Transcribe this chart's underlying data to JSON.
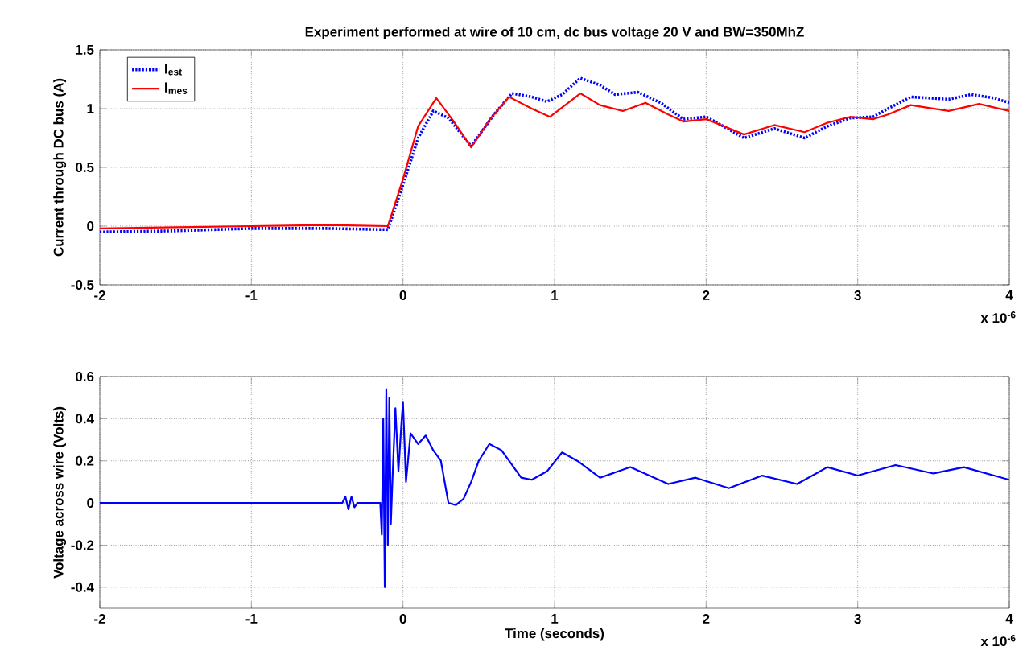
{
  "chart_data": [
    {
      "type": "line",
      "title": "Experiment performed at wire of 10 cm, dc bus voltage 20 V and BW=350MhZ",
      "ylabel": "Current through DC bus (A)",
      "series": [
        {
          "name": "I$_{est}$",
          "color": "#0000ff",
          "line_style": "dotted",
          "x": [
            -2,
            -1.5,
            -1,
            -0.5,
            -0.1,
            0,
            0.1,
            0.2,
            0.3,
            0.45,
            0.6,
            0.72,
            0.85,
            0.95,
            1.05,
            1.17,
            1.3,
            1.4,
            1.55,
            1.7,
            1.85,
            2.0,
            2.1,
            2.25,
            2.45,
            2.65,
            2.8,
            2.95,
            3.1,
            3.2,
            3.35,
            3.6,
            3.75,
            3.9,
            4
          ],
          "values": [
            -0.05,
            -0.04,
            -0.02,
            -0.02,
            -0.03,
            0.35,
            0.75,
            0.98,
            0.92,
            0.68,
            0.95,
            1.13,
            1.1,
            1.06,
            1.12,
            1.26,
            1.2,
            1.12,
            1.14,
            1.05,
            0.91,
            0.93,
            0.86,
            0.75,
            0.83,
            0.75,
            0.85,
            0.92,
            0.93,
            1.0,
            1.1,
            1.08,
            1.12,
            1.09,
            1.05
          ]
        },
        {
          "name": "I$_{mes}$",
          "color": "#ff0000",
          "line_style": "solid",
          "x": [
            -2,
            -1.5,
            -1,
            -0.5,
            -0.1,
            0,
            0.1,
            0.22,
            0.33,
            0.45,
            0.58,
            0.7,
            0.85,
            0.97,
            1.17,
            1.3,
            1.45,
            1.6,
            1.75,
            1.85,
            2.0,
            2.1,
            2.25,
            2.45,
            2.65,
            2.8,
            2.95,
            3.1,
            3.2,
            3.35,
            3.6,
            3.8,
            4
          ],
          "values": [
            -0.02,
            -0.01,
            0.0,
            0.01,
            0.0,
            0.4,
            0.85,
            1.09,
            0.9,
            0.67,
            0.92,
            1.1,
            1.0,
            0.93,
            1.13,
            1.03,
            0.98,
            1.05,
            0.95,
            0.89,
            0.91,
            0.86,
            0.78,
            0.86,
            0.8,
            0.88,
            0.93,
            0.91,
            0.95,
            1.03,
            0.98,
            1.04,
            0.98
          ]
        }
      ],
      "xlim": [
        -2,
        4
      ],
      "ylim": [
        -0.5,
        1.5
      ],
      "xticks": [
        -2,
        -1,
        0,
        1,
        2,
        3,
        4
      ],
      "yticks": [
        -0.5,
        0,
        0.5,
        1,
        1.5
      ],
      "grid": true,
      "legend": "top left",
      "marker": "none",
      "annotations": [
        "x 10$^{-6}$"
      ]
    },
    {
      "type": "line",
      "xlabel": "Time (seconds)",
      "ylabel": "Voltage across wire (Volts)",
      "series": [
        {
          "color": "#0000ff",
          "line_style": "solid",
          "x": [
            -2,
            -1.5,
            -1,
            -0.5,
            -0.4,
            -0.38,
            -0.36,
            -0.34,
            -0.32,
            -0.3,
            -0.2,
            -0.15,
            -0.14,
            -0.13,
            -0.12,
            -0.11,
            -0.1,
            -0.09,
            -0.08,
            -0.07,
            -0.05,
            -0.03,
            -0.01,
            0.0,
            0.02,
            0.05,
            0.1,
            0.15,
            0.2,
            0.25,
            0.3,
            0.35,
            0.4,
            0.45,
            0.5,
            0.57,
            0.65,
            0.72,
            0.78,
            0.85,
            0.95,
            1.05,
            1.15,
            1.3,
            1.5,
            1.75,
            1.93,
            2.15,
            2.37,
            2.6,
            2.8,
            3.0,
            3.25,
            3.5,
            3.7,
            4
          ],
          "values": [
            0,
            0,
            0,
            0,
            0,
            0.03,
            -0.03,
            0.03,
            -0.02,
            0,
            0,
            0,
            -0.15,
            0.4,
            -0.4,
            0.54,
            -0.2,
            0.5,
            -0.1,
            0.1,
            0.45,
            0.15,
            0.38,
            0.48,
            0.1,
            0.33,
            0.28,
            0.32,
            0.25,
            0.2,
            0.0,
            -0.01,
            0.02,
            0.1,
            0.2,
            0.28,
            0.25,
            0.18,
            0.12,
            0.11,
            0.15,
            0.24,
            0.2,
            0.12,
            0.17,
            0.09,
            0.12,
            0.07,
            0.13,
            0.09,
            0.17,
            0.13,
            0.18,
            0.14,
            0.17,
            0.11
          ]
        }
      ],
      "xlim": [
        -2,
        4
      ],
      "ylim": [
        -0.5,
        0.6
      ],
      "xticks": [
        -2,
        -1,
        0,
        1,
        2,
        3,
        4
      ],
      "yticks": [
        -0.4,
        -0.2,
        0,
        0.2,
        0.4,
        0.6
      ],
      "grid": true,
      "marker": "none",
      "annotations": [
        "x 10$^{-6}$"
      ]
    }
  ]
}
